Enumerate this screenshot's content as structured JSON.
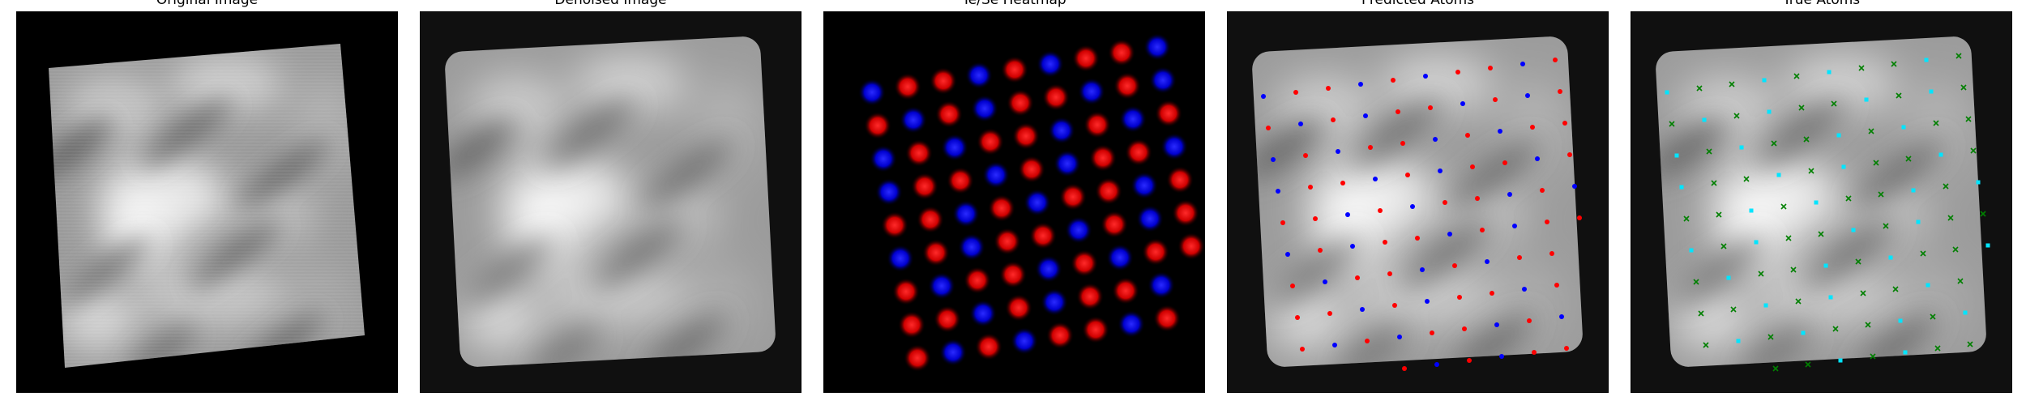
{
  "panels": [
    {
      "id": "original",
      "title": "Original Image"
    },
    {
      "id": "denoised",
      "title": "Denoised Image"
    },
    {
      "id": "heatmap",
      "title": "Te/Se Heatmap"
    },
    {
      "id": "predicted",
      "title": "Predicted Atoms"
    },
    {
      "id": "true",
      "title": "True Atoms"
    }
  ],
  "colors": {
    "heat_red": "#ff1a1a",
    "heat_blue": "#1a1aff",
    "pred_red": "#ff0000",
    "pred_blue": "#0000ff",
    "true_cyan": "#00e5ff",
    "true_green": "#008000"
  },
  "markers": {
    "predicted": "dot",
    "true_cyan": "square",
    "true_green": "x"
  }
}
